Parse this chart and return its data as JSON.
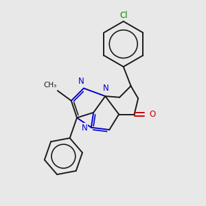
{
  "bg": "#e8e8e8",
  "bc": "#1a1a1a",
  "nc": "#0000cc",
  "oc": "#cc0000",
  "clc": "#008800",
  "lw": 1.4,
  "fs": 8.5,
  "xlim": [
    0.05,
    0.95
  ],
  "ylim": [
    0.05,
    0.95
  ]
}
